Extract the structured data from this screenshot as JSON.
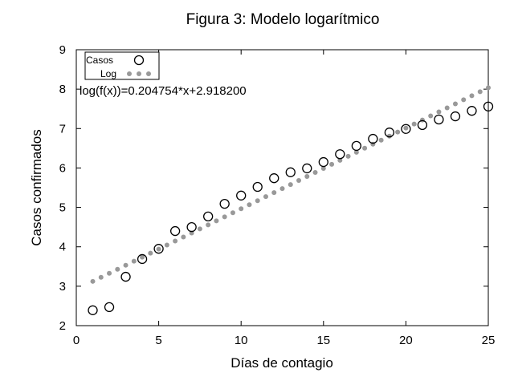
{
  "chart_data": {
    "type": "scatter",
    "title": "Figura 3: Modelo logarítmico",
    "xlabel": "Días de contagio",
    "ylabel": "Casos confirmados",
    "xlim": [
      0,
      25
    ],
    "ylim": [
      2,
      9
    ],
    "xticks": [
      0,
      5,
      10,
      15,
      20,
      25
    ],
    "yticks": [
      2,
      3,
      4,
      5,
      6,
      7,
      8,
      9
    ],
    "grid": false,
    "legend_position": "top-left",
    "annotation": "log(f(x))=0.204754*x+2.918200",
    "series": [
      {
        "name": "Casos",
        "marker": "open-circle",
        "color": "#000000",
        "x": [
          1,
          2,
          3,
          4,
          5,
          6,
          7,
          8,
          9,
          10,
          11,
          12,
          13,
          14,
          15,
          16,
          17,
          18,
          19,
          20,
          21,
          22,
          23,
          24,
          25
        ],
        "y": [
          2.39,
          2.47,
          3.24,
          3.69,
          3.95,
          4.4,
          4.5,
          4.77,
          5.09,
          5.3,
          5.52,
          5.74,
          5.89,
          5.99,
          6.15,
          6.35,
          6.56,
          6.74,
          6.9,
          6.99,
          7.09,
          7.23,
          7.31,
          7.45,
          7.56
        ]
      },
      {
        "name": "Log",
        "marker": "dotted-line",
        "color": "#999999",
        "slope": 0.204754,
        "intercept": 2.9182,
        "x_range": [
          1,
          25
        ]
      }
    ]
  }
}
